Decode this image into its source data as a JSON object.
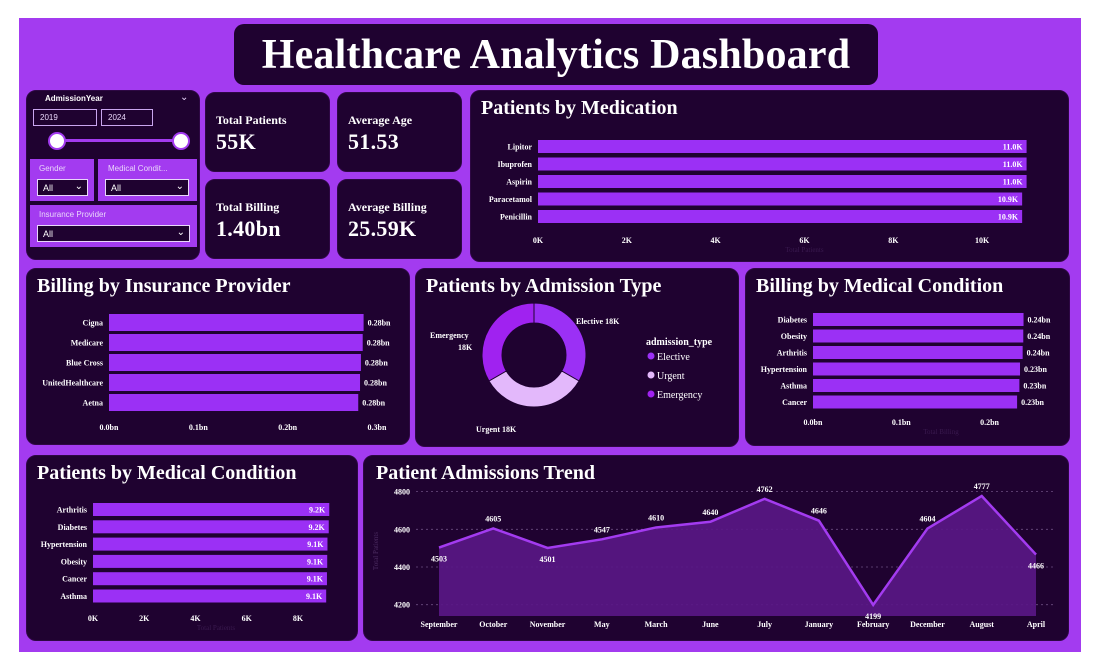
{
  "title": "Healthcare Analytics Dashboard",
  "filters": {
    "admission_year_label": "AdmissionYear",
    "year_from": "2019",
    "year_to": "2024",
    "gender_label": "Gender",
    "gender_value": "All",
    "condition_label": "Medical Condit...",
    "condition_value": "All",
    "insurance_label": "Insurance Provider",
    "insurance_value": "All"
  },
  "kpis": {
    "total_patients_label": "Total Patients",
    "total_patients_value": "55K",
    "average_age_label": "Average Age",
    "average_age_value": "51.53",
    "total_billing_label": "Total Billing",
    "total_billing_value": "1.40bn",
    "average_billing_label": "Average Billing",
    "average_billing_value": "25.59K"
  },
  "colors": {
    "frame": "#a33bf0",
    "panel": "#1f0230",
    "bar": "#9b30f5",
    "urgent": "#e3b8fb",
    "emergency": "#a022f0"
  },
  "chart_data": [
    {
      "id": "medication",
      "type": "bar",
      "title": "Patients by Medication",
      "categories": [
        "Lipitor",
        "Ibuprofen",
        "Aspirin",
        "Paracetamol",
        "Penicillin"
      ],
      "values": [
        11.0,
        11.0,
        11.0,
        10.9,
        10.9
      ],
      "labels": [
        "11.0K",
        "11.0K",
        "11.0K",
        "10.9K",
        "10.9K"
      ],
      "xticks": [
        "0K",
        "2K",
        "4K",
        "6K",
        "8K",
        "10K"
      ],
      "xlim": [
        0,
        12
      ],
      "xlabel": "Total Patients"
    },
    {
      "id": "insurance",
      "type": "bar",
      "title": "Billing by Insurance Provider",
      "categories": [
        "Cigna",
        "Medicare",
        "Blue Cross",
        "UnitedHealthcare",
        "Aetna"
      ],
      "values": [
        0.285,
        0.284,
        0.282,
        0.281,
        0.279
      ],
      "labels": [
        "0.28bn",
        "0.28bn",
        "0.28bn",
        "0.28bn",
        "0.28bn"
      ],
      "xticks": [
        "0.0bn",
        "0.1bn",
        "0.2bn",
        "0.3bn"
      ],
      "xlim": [
        0,
        0.3
      ]
    },
    {
      "id": "admission_type",
      "type": "pie",
      "title": "Patients by Admission Type",
      "legend_title": "admission_type",
      "categories": [
        "Elective",
        "Urgent",
        "Emergency"
      ],
      "values": [
        18,
        18,
        18
      ],
      "labels": [
        "Elective 18K",
        "Urgent 18K",
        "Emergency 18K"
      ]
    },
    {
      "id": "billing_condition",
      "type": "bar",
      "title": "Billing by Medical Condition",
      "categories": [
        "Diabetes",
        "Obesity",
        "Arthritis",
        "Hypertension",
        "Asthma",
        "Cancer"
      ],
      "values": [
        0.2385,
        0.2382,
        0.2375,
        0.2345,
        0.2338,
        0.2312
      ],
      "labels": [
        "0.24bn",
        "0.24bn",
        "0.24bn",
        "0.23bn",
        "0.23bn",
        "0.23bn"
      ],
      "xticks": [
        "0.0bn",
        "0.1bn",
        "0.2bn"
      ],
      "xlim": [
        0,
        0.29
      ],
      "xlabel": "Total Billing"
    },
    {
      "id": "patients_condition",
      "type": "bar",
      "title": "Patients by Medical Condition",
      "categories": [
        "Arthritis",
        "Diabetes",
        "Hypertension",
        "Obesity",
        "Cancer",
        "Asthma"
      ],
      "values": [
        9.22,
        9.2,
        9.15,
        9.14,
        9.13,
        9.1
      ],
      "labels": [
        "9.2K",
        "9.2K",
        "9.1K",
        "9.1K",
        "9.1K",
        "9.1K"
      ],
      "xticks": [
        "0K",
        "2K",
        "4K",
        "6K",
        "8K"
      ],
      "xlim": [
        0,
        9.6
      ],
      "xlabel": "Total Patients"
    },
    {
      "id": "trend",
      "type": "area",
      "title": "Patient Admissions Trend",
      "categories": [
        "September",
        "October",
        "November",
        "May",
        "March",
        "June",
        "July",
        "January",
        "February",
        "December",
        "August",
        "April"
      ],
      "values": [
        4503,
        4605,
        4501,
        4547,
        4610,
        4640,
        4762,
        4646,
        4199,
        4604,
        4777,
        4466
      ],
      "yticks": [
        4200,
        4400,
        4600,
        4800
      ],
      "ylim": [
        4140,
        4830
      ],
      "ylabel": "Total Patients"
    }
  ]
}
